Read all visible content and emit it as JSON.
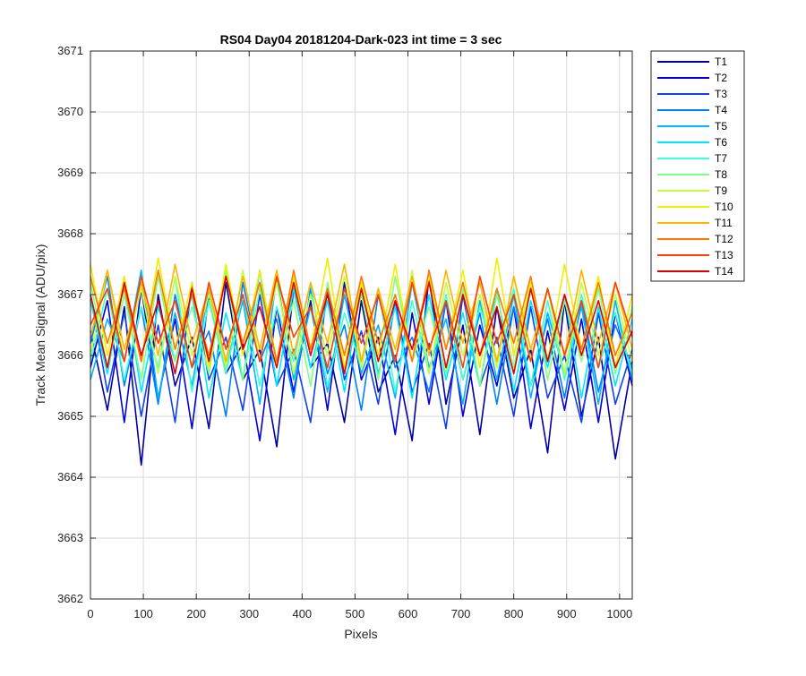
{
  "chart_data": {
    "type": "line",
    "title": "RS04 Day04 20181204-Dark-023 int time = 3 sec",
    "xlabel": "Pixels",
    "ylabel": "Track Mean Signal (ADU/pix)",
    "xlim": [
      0,
      1024
    ],
    "ylim": [
      3662,
      3671
    ],
    "xticks": [
      0,
      100,
      200,
      300,
      400,
      500,
      600,
      700,
      800,
      900,
      1000
    ],
    "yticks": [
      3662,
      3663,
      3664,
      3665,
      3666,
      3667,
      3668,
      3669,
      3670,
      3671
    ],
    "grid": true,
    "legend_position": "outside-top-right",
    "x": [
      0,
      32,
      64,
      96,
      128,
      160,
      192,
      224,
      256,
      288,
      320,
      352,
      384,
      416,
      448,
      480,
      512,
      544,
      576,
      608,
      640,
      672,
      704,
      736,
      768,
      800,
      832,
      864,
      896,
      928,
      960,
      992,
      1024
    ],
    "series": [
      {
        "name": "T1",
        "color": "#0000a0",
        "values": [
          3666.4,
          3665.1,
          3666.8,
          3664.2,
          3667.0,
          3665.5,
          3666.3,
          3664.8,
          3667.2,
          3665.6,
          3666.1,
          3664.5,
          3667.1,
          3665.8,
          3666.2,
          3664.9,
          3666.9,
          3665.4,
          3666.0,
          3664.6,
          3667.3,
          3665.2,
          3666.5,
          3664.7,
          3666.8,
          3665.3,
          3666.1,
          3664.4,
          3666.9,
          3665.0,
          3666.3,
          3664.3,
          3665.9
        ]
      },
      {
        "name": "T2",
        "color": "#0000d8",
        "values": [
          3665.8,
          3666.9,
          3664.9,
          3667.1,
          3665.3,
          3666.6,
          3664.8,
          3667.0,
          3665.7,
          3666.2,
          3664.6,
          3666.8,
          3665.4,
          3666.9,
          3665.1,
          3667.2,
          3665.6,
          3666.3,
          3664.7,
          3666.7,
          3665.2,
          3666.9,
          3665.0,
          3666.5,
          3665.5,
          3666.8,
          3664.8,
          3666.4,
          3665.1,
          3666.6,
          3664.9,
          3666.7,
          3665.5
        ]
      },
      {
        "name": "T3",
        "color": "#1040f0",
        "values": [
          3667.0,
          3665.4,
          3666.7,
          3665.0,
          3666.5,
          3664.9,
          3667.2,
          3665.6,
          3666.3,
          3665.1,
          3667.0,
          3665.5,
          3666.1,
          3664.9,
          3667.1,
          3665.6,
          3666.4,
          3665.2,
          3666.9,
          3665.4,
          3666.2,
          3664.8,
          3667.0,
          3665.5,
          3666.3,
          3665.0,
          3666.8,
          3665.3,
          3666.0,
          3664.9,
          3666.7,
          3665.2,
          3666.1
        ]
      },
      {
        "name": "T4",
        "color": "#0080ff",
        "values": [
          3666.2,
          3667.3,
          3665.5,
          3666.8,
          3665.2,
          3667.0,
          3665.8,
          3666.4,
          3665.0,
          3667.2,
          3665.9,
          3666.6,
          3665.3,
          3667.1,
          3665.7,
          3666.5,
          3665.1,
          3667.0,
          3665.8,
          3666.3,
          3665.4,
          3666.9,
          3665.6,
          3666.7,
          3665.2,
          3666.8,
          3665.5,
          3666.6,
          3665.3,
          3666.9,
          3665.4,
          3666.5,
          3665.8
        ]
      },
      {
        "name": "T5",
        "color": "#00b4ff",
        "values": [
          3665.6,
          3666.6,
          3665.9,
          3667.4,
          3665.3,
          3666.7,
          3665.5,
          3667.1,
          3665.8,
          3666.9,
          3665.2,
          3667.3,
          3665.6,
          3666.8,
          3665.4,
          3667.0,
          3665.7,
          3666.5,
          3665.3,
          3667.2,
          3665.8,
          3666.6,
          3665.2,
          3666.9,
          3665.6,
          3667.0,
          3665.3,
          3666.7,
          3665.7,
          3666.8,
          3665.2,
          3666.9,
          3665.6
        ]
      },
      {
        "name": "T6",
        "color": "#00e8ff",
        "values": [
          3666.9,
          3665.7,
          3667.2,
          3665.4,
          3666.8,
          3665.9,
          3667.0,
          3665.3,
          3666.7,
          3665.6,
          3667.4,
          3665.5,
          3667.1,
          3665.8,
          3666.9,
          3665.4,
          3667.2,
          3665.7,
          3666.8,
          3665.3,
          3667.0,
          3665.6,
          3666.7,
          3665.5,
          3667.1,
          3665.4,
          3666.9,
          3665.8,
          3667.0,
          3665.3,
          3666.8,
          3665.5,
          3666.6
        ]
      },
      {
        "name": "T7",
        "color": "#40ffd0",
        "values": [
          3665.9,
          3667.1,
          3665.6,
          3666.8,
          3665.8,
          3667.3,
          3665.4,
          3666.9,
          3665.7,
          3667.0,
          3665.5,
          3666.8,
          3665.9,
          3667.2,
          3665.5,
          3666.7,
          3665.8,
          3667.1,
          3665.4,
          3666.9,
          3665.7,
          3667.0,
          3665.6,
          3666.8,
          3665.9,
          3667.1,
          3665.5,
          3666.9,
          3665.6,
          3667.0,
          3665.8,
          3666.7,
          3665.7
        ]
      },
      {
        "name": "T8",
        "color": "#80ff80",
        "values": [
          3667.2,
          3665.8,
          3667.0,
          3665.6,
          3667.3,
          3665.9,
          3666.8,
          3665.7,
          3667.4,
          3665.6,
          3667.1,
          3665.9,
          3666.9,
          3665.5,
          3667.2,
          3665.8,
          3667.0,
          3665.6,
          3667.3,
          3665.9,
          3666.8,
          3665.7,
          3667.1,
          3665.5,
          3667.0,
          3665.8,
          3667.2,
          3665.6,
          3666.9,
          3665.9,
          3667.1,
          3665.7,
          3666.8
        ]
      },
      {
        "name": "T9",
        "color": "#c0ff40",
        "values": [
          3666.0,
          3667.4,
          3665.9,
          3667.1,
          3665.7,
          3667.3,
          3666.0,
          3667.0,
          3665.8,
          3667.4,
          3665.9,
          3667.2,
          3665.7,
          3667.0,
          3666.0,
          3667.3,
          3665.8,
          3667.1,
          3665.9,
          3667.4,
          3665.7,
          3667.2,
          3666.0,
          3667.0,
          3665.8,
          3667.3,
          3665.9,
          3667.1,
          3665.7,
          3667.2,
          3666.0,
          3667.0,
          3665.9
        ]
      },
      {
        "name": "T10",
        "color": "#f0f000",
        "values": [
          3667.5,
          3666.0,
          3667.3,
          3665.9,
          3667.6,
          3666.1,
          3667.2,
          3665.8,
          3667.5,
          3666.0,
          3667.4,
          3665.9,
          3667.3,
          3666.1,
          3667.6,
          3665.8,
          3667.2,
          3666.0,
          3667.5,
          3665.9,
          3667.3,
          3666.1,
          3667.4,
          3665.8,
          3667.6,
          3666.0,
          3667.2,
          3665.9,
          3667.5,
          3666.1,
          3667.3,
          3665.8,
          3667.0
        ]
      },
      {
        "name": "T11",
        "color": "#ffb400",
        "values": [
          3666.3,
          3667.4,
          3666.1,
          3667.2,
          3666.0,
          3667.5,
          3666.2,
          3667.1,
          3665.9,
          3667.3,
          3666.1,
          3667.4,
          3666.0,
          3667.2,
          3666.2,
          3667.5,
          3665.9,
          3667.1,
          3666.1,
          3667.3,
          3666.0,
          3667.4,
          3666.2,
          3667.2,
          3665.9,
          3667.3,
          3666.1,
          3667.1,
          3666.0,
          3667.4,
          3666.2,
          3667.2,
          3666.1
        ]
      },
      {
        "name": "T12",
        "color": "#ff7800",
        "values": [
          3667.3,
          3666.2,
          3667.1,
          3665.9,
          3667.4,
          3666.1,
          3667.0,
          3666.0,
          3667.3,
          3666.2,
          3667.2,
          3665.9,
          3667.4,
          3666.1,
          3667.1,
          3666.0,
          3667.3,
          3666.2,
          3667.0,
          3665.9,
          3667.4,
          3666.1,
          3667.2,
          3666.0,
          3667.1,
          3666.2,
          3667.3,
          3665.9,
          3667.0,
          3666.1,
          3667.2,
          3666.0,
          3666.7
        ]
      },
      {
        "name": "T13",
        "color": "#ff4000",
        "values": [
          3666.5,
          3667.1,
          3665.9,
          3667.3,
          3666.2,
          3666.9,
          3665.8,
          3667.2,
          3666.1,
          3667.0,
          3665.9,
          3667.3,
          3666.3,
          3666.8,
          3665.8,
          3667.1,
          3666.2,
          3667.0,
          3665.9,
          3667.2,
          3666.1,
          3666.9,
          3665.8,
          3667.3,
          3666.2,
          3667.0,
          3665.9,
          3667.1,
          3666.0,
          3666.9,
          3665.8,
          3667.2,
          3666.3
        ]
      },
      {
        "name": "T14",
        "color": "#e00000",
        "values": [
          3667.0,
          3665.8,
          3667.2,
          3666.0,
          3666.9,
          3665.7,
          3667.1,
          3665.9,
          3667.3,
          3666.1,
          3666.8,
          3665.8,
          3667.2,
          3666.0,
          3667.0,
          3665.7,
          3667.1,
          3665.9,
          3666.9,
          3666.1,
          3667.2,
          3665.8,
          3667.0,
          3666.0,
          3666.8,
          3665.7,
          3667.1,
          3665.9,
          3667.0,
          3666.0,
          3666.9,
          3665.8,
          3666.4
        ]
      }
    ]
  }
}
